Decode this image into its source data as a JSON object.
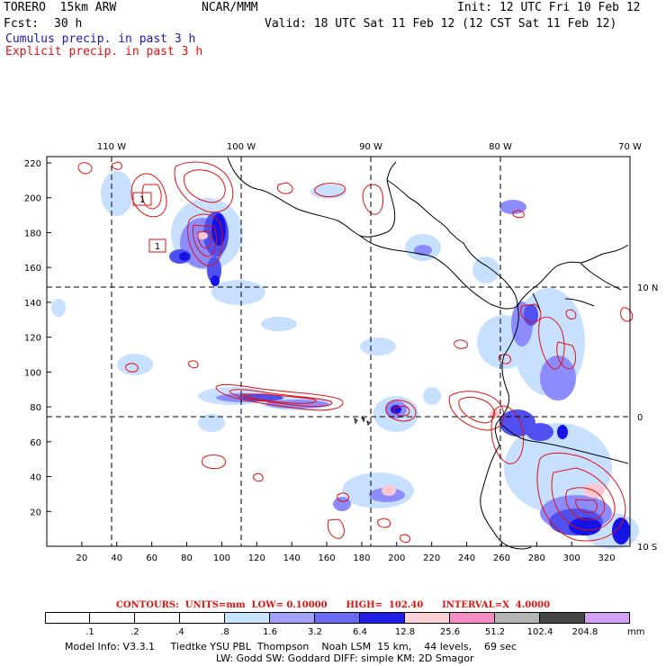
{
  "header": {
    "model": "TORERO  15km ARW",
    "org": "NCAR/MMM",
    "init": "Init: 12 UTC Fri 10 Feb 12",
    "fcst_label": "Fcst:",
    "fcst_value": "30 h",
    "valid": "Valid: 18 UTC Sat 11 Feb 12 (12 CST Sat 11 Feb 12)",
    "line_cumulus": "Cumulus precip. in past 3 h",
    "line_explicit": "Explicit precip. in past 3 h"
  },
  "map": {
    "top_lon_labels": [
      "110 W",
      "100 W",
      "90 W",
      "80 W",
      "70 W"
    ],
    "right_lat_labels": [
      "10 N",
      "0",
      "10 S"
    ],
    "left_ticks": [
      "220",
      "200",
      "180",
      "160",
      "140",
      "120",
      "100",
      "80",
      "60",
      "40",
      "20"
    ],
    "bottom_ticks": [
      "20",
      "40",
      "60",
      "80",
      "100",
      "120",
      "140",
      "160",
      "180",
      "200",
      "220",
      "240",
      "260",
      "280",
      "300",
      "320"
    ],
    "box_labels": [
      "1",
      "1"
    ],
    "colors": {
      "coast": "#000000",
      "contour": "#e01010",
      "light_blue": "#c8e0ff",
      "mid_blue": "#8c8cff",
      "blue": "#5050f0",
      "deep_blue": "#1414e6",
      "pink": "#ffc8d0"
    }
  },
  "contours_line": "CONTOURS:  UNITS=mm  LOW= 0.10000      HIGH=  102.40      INTERVAL=X  4.0000",
  "colorbar": {
    "labels": [
      ".1",
      ".2",
      ".4",
      ".8",
      "1.6",
      "3.2",
      "6.4",
      "12.8",
      "25.6",
      "51.2",
      "102.4",
      "204.8"
    ],
    "unit": "mm",
    "colors": [
      "#ffffff",
      "#ffffff",
      "#ffffff",
      "#ffffff",
      "#c8e6ff",
      "#a0a0ff",
      "#6a6af5",
      "#1e1ee6",
      "#ffd2d7",
      "#f58cc3",
      "#b4b4b4",
      "#464646",
      "#d2a0f5"
    ]
  },
  "footer": {
    "line1": "Model Info: V3.3.1     Tiedtke YSU PBL  Thompson    Noah LSM  15 km,    44 levels,    69 sec",
    "line2": "LW: Godd SW: Goddard DIFF: simple KM: 2D Smagor"
  }
}
